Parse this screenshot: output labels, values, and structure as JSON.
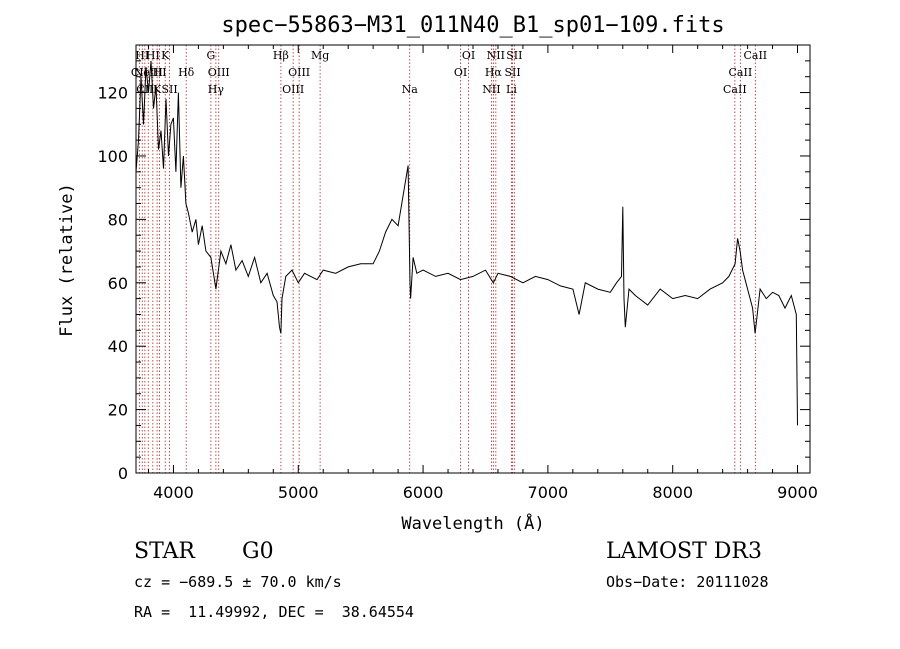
{
  "chart_data": {
    "type": "line",
    "title": "spec−55863−M31_011N40_B1_sp01−109.fits",
    "xlabel": "Wavelength (Å)",
    "ylabel": "Flux (relative)",
    "xlim": [
      3700,
      9100
    ],
    "ylim": [
      0,
      135
    ],
    "xticks": [
      4000,
      5000,
      6000,
      7000,
      8000,
      9000
    ],
    "xtick_labels": [
      "4000",
      "5000",
      "6000",
      "7000",
      "8000",
      "9000"
    ],
    "yticks": [
      0,
      20,
      40,
      60,
      80,
      100,
      120
    ],
    "ytick_labels": [
      "0",
      "20",
      "40",
      "60",
      "80",
      "100",
      "120"
    ],
    "grid": false,
    "line_color": "#000000",
    "marker_color": "#b22222",
    "series": [
      {
        "name": "spectrum",
        "x": [
          3700,
          3720,
          3740,
          3760,
          3780,
          3800,
          3820,
          3840,
          3860,
          3880,
          3900,
          3920,
          3940,
          3960,
          3980,
          4000,
          4020,
          4040,
          4060,
          4080,
          4100,
          4120,
          4150,
          4180,
          4200,
          4230,
          4260,
          4300,
          4340,
          4380,
          4420,
          4460,
          4500,
          4550,
          4600,
          4650,
          4700,
          4750,
          4800,
          4830,
          4850,
          4861,
          4870,
          4900,
          4950,
          5000,
          5050,
          5100,
          5150,
          5200,
          5300,
          5400,
          5500,
          5600,
          5650,
          5700,
          5750,
          5800,
          5850,
          5880,
          5895,
          5900,
          5920,
          5950,
          6000,
          6100,
          6200,
          6300,
          6400,
          6500,
          6563,
          6600,
          6700,
          6800,
          6900,
          7000,
          7100,
          7200,
          7250,
          7300,
          7400,
          7500,
          7550,
          7590,
          7600,
          7610,
          7620,
          7650,
          7700,
          7800,
          7900,
          8000,
          8100,
          8200,
          8300,
          8400,
          8450,
          8500,
          8520,
          8540,
          8560,
          8600,
          8640,
          8660,
          8700,
          8750,
          8800,
          8850,
          8900,
          8950,
          8990,
          9000
        ],
        "values": [
          95,
          105,
          125,
          110,
          128,
          120,
          130,
          115,
          122,
          102,
          108,
          96,
          118,
          100,
          110,
          112,
          95,
          120,
          90,
          100,
          85,
          82,
          76,
          80,
          72,
          78,
          70,
          68,
          58,
          70,
          66,
          72,
          64,
          67,
          62,
          68,
          60,
          63,
          56,
          54,
          46,
          44,
          55,
          62,
          64,
          60,
          63,
          62,
          61,
          64,
          63,
          65,
          66,
          66,
          70,
          76,
          80,
          78,
          90,
          97,
          60,
          55,
          68,
          63,
          64,
          62,
          63,
          61,
          62,
          64,
          60,
          63,
          62,
          60,
          62,
          61,
          59,
          58,
          50,
          60,
          58,
          57,
          60,
          62,
          84,
          55,
          46,
          58,
          56,
          53,
          58,
          55,
          56,
          55,
          58,
          60,
          62,
          66,
          74,
          70,
          64,
          58,
          52,
          44,
          58,
          55,
          57,
          56,
          52,
          56,
          50,
          15
        ]
      }
    ],
    "lines": [
      {
        "wavelength": 3727,
        "labels": [
          "CII"
        ]
      },
      {
        "wavelength": 3750,
        "labels": [
          "HI"
        ]
      },
      {
        "wavelength": 3771,
        "labels": [
          "CII"
        ]
      },
      {
        "wavelength": 3798,
        "labels": [
          "NeIII"
        ]
      },
      {
        "wavelength": 3835,
        "labels": [
          "HI"
        ]
      },
      {
        "wavelength": 3869,
        "labels": [
          "K"
        ]
      },
      {
        "wavelength": 3889,
        "labels": [
          "HI"
        ]
      },
      {
        "wavelength": 3934,
        "labels": [
          "K"
        ]
      },
      {
        "wavelength": 3969,
        "labels": [
          "SII"
        ]
      },
      {
        "wavelength": 4102,
        "labels": [
          "Hδ"
        ]
      },
      {
        "wavelength": 4300,
        "labels": [
          "G"
        ]
      },
      {
        "wavelength": 4340,
        "labels": [
          "Hγ"
        ]
      },
      {
        "wavelength": 4363,
        "labels": [
          "OIII"
        ]
      },
      {
        "wavelength": 4861,
        "labels": [
          "Hβ"
        ]
      },
      {
        "wavelength": 4959,
        "labels": [
          "OIII"
        ]
      },
      {
        "wavelength": 5007,
        "labels": [
          "OIII"
        ]
      },
      {
        "wavelength": 5175,
        "labels": [
          "Mg"
        ]
      },
      {
        "wavelength": 5893,
        "labels": [
          "Na"
        ]
      },
      {
        "wavelength": 6300,
        "labels": [
          "OI"
        ]
      },
      {
        "wavelength": 6364,
        "labels": [
          "OI"
        ]
      },
      {
        "wavelength": 6548,
        "labels": [
          "NII"
        ]
      },
      {
        "wavelength": 6563,
        "labels": [
          "Hα"
        ]
      },
      {
        "wavelength": 6583,
        "labels": [
          "NII"
        ]
      },
      {
        "wavelength": 6708,
        "labels": [
          "Li"
        ]
      },
      {
        "wavelength": 6717,
        "labels": [
          "SII"
        ]
      },
      {
        "wavelength": 6731,
        "labels": [
          "SII"
        ]
      },
      {
        "wavelength": 8498,
        "labels": [
          "CaII"
        ]
      },
      {
        "wavelength": 8542,
        "labels": [
          "CaII"
        ]
      },
      {
        "wavelength": 8662,
        "labels": [
          "CaII"
        ]
      }
    ],
    "annotations": {
      "object_type": "STAR",
      "subclass": "G0",
      "survey": "LAMOST DR3",
      "velocity": "cz = −689.5 ± 70.0 km/s",
      "obs_date": "Obs−Date: 20111028",
      "coords": "RA =  11.49992, DEC =  38.64554"
    }
  }
}
